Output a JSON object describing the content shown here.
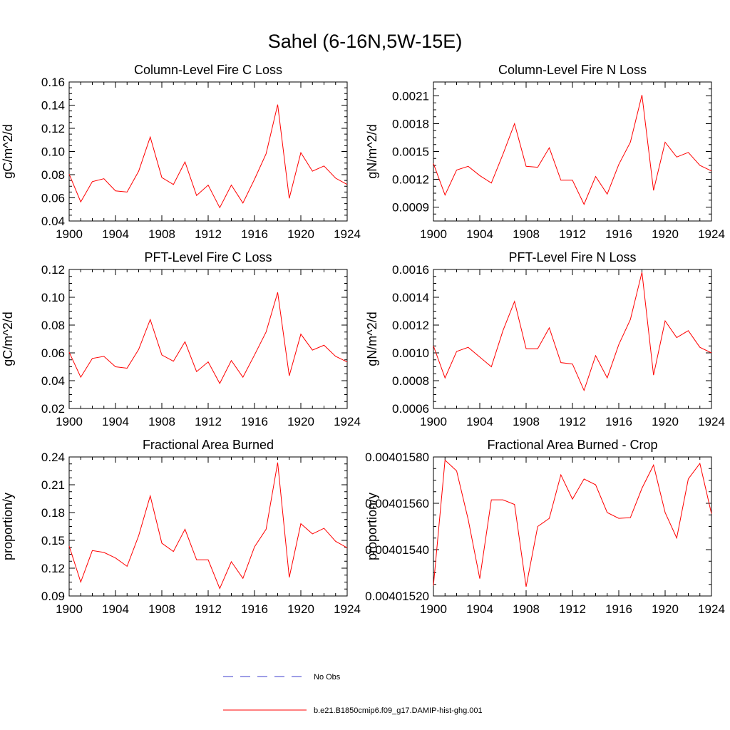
{
  "figure": {
    "title": "Sahel (6-16N,5W-15E)",
    "legend": [
      {
        "label": "No Obs",
        "style": "dashed",
        "color": "#3d3dcc"
      },
      {
        "label": "b.e21.B1850cmip6.f09_g17.DAMIP-hist-ghg.001",
        "style": "solid",
        "color": "#ff0000"
      }
    ]
  },
  "chart_data": [
    {
      "type": "line",
      "title": "Column-Level Fire C Loss",
      "ylabel": "gC/m^2/d",
      "xlim": [
        1900,
        1924
      ],
      "ylim": [
        0.04,
        0.16
      ],
      "xticks": [
        "1900",
        "1904",
        "1908",
        "1912",
        "1916",
        "1920",
        "1924"
      ],
      "yticks": [
        "0.04",
        "0.06",
        "0.08",
        "0.10",
        "0.12",
        "0.14",
        "0.16"
      ],
      "x": [
        1900,
        1901,
        1902,
        1903,
        1904,
        1905,
        1906,
        1907,
        1908,
        1909,
        1910,
        1911,
        1912,
        1913,
        1914,
        1915,
        1916,
        1917,
        1918,
        1919,
        1920,
        1921,
        1922,
        1923,
        1924
      ],
      "series": [
        {
          "name": "b.e21.B1850cmip6.f09_g17.DAMIP-hist-ghg.001",
          "color": "#ff0000",
          "values": [
            0.0805,
            0.0565,
            0.074,
            0.0765,
            0.066,
            0.065,
            0.083,
            0.1125,
            0.0775,
            0.0715,
            0.091,
            0.062,
            0.071,
            0.0515,
            0.071,
            0.0555,
            0.076,
            0.098,
            0.1405,
            0.0595,
            0.099,
            0.083,
            0.0875,
            0.077,
            0.0715
          ]
        }
      ]
    },
    {
      "type": "line",
      "title": "Column-Level Fire N Loss",
      "ylabel": "gN/m^2/d",
      "xlim": [
        1900,
        1924
      ],
      "ylim": [
        0.00075,
        0.00225
      ],
      "xticks": [
        "1900",
        "1904",
        "1908",
        "1912",
        "1916",
        "1920",
        "1924"
      ],
      "yticks": [
        "0.0009",
        "0.0012",
        "0.0015",
        "0.0018",
        "0.0021"
      ],
      "x": [
        1900,
        1901,
        1902,
        1903,
        1904,
        1905,
        1906,
        1907,
        1908,
        1909,
        1910,
        1911,
        1912,
        1913,
        1914,
        1915,
        1916,
        1917,
        1918,
        1919,
        1920,
        1921,
        1922,
        1923,
        1924
      ],
      "series": [
        {
          "name": "b.e21.B1850cmip6.f09_g17.DAMIP-hist-ghg.001",
          "color": "#ff0000",
          "values": [
            0.00137,
            0.00103,
            0.0013,
            0.00134,
            0.00124,
            0.00116,
            0.00147,
            0.0018,
            0.00134,
            0.00133,
            0.00154,
            0.00119,
            0.00119,
            0.00093,
            0.00123,
            0.00104,
            0.00136,
            0.0016,
            0.00211,
            0.00108,
            0.0016,
            0.00144,
            0.00149,
            0.00135,
            0.00129
          ]
        }
      ]
    },
    {
      "type": "line",
      "title": "PFT-Level Fire C Loss",
      "ylabel": "gC/m^2/d",
      "xlim": [
        1900,
        1924
      ],
      "ylim": [
        0.02,
        0.12
      ],
      "xticks": [
        "1900",
        "1904",
        "1908",
        "1912",
        "1916",
        "1920",
        "1924"
      ],
      "yticks": [
        "0.02",
        "0.04",
        "0.06",
        "0.08",
        "0.10",
        "0.12"
      ],
      "x": [
        1900,
        1901,
        1902,
        1903,
        1904,
        1905,
        1906,
        1907,
        1908,
        1909,
        1910,
        1911,
        1912,
        1913,
        1914,
        1915,
        1916,
        1917,
        1918,
        1919,
        1920,
        1921,
        1922,
        1923,
        1924
      ],
      "series": [
        {
          "name": "b.e21.B1850cmip6.f09_g17.DAMIP-hist-ghg.001",
          "color": "#ff0000",
          "values": [
            0.0605,
            0.0425,
            0.056,
            0.0575,
            0.05,
            0.049,
            0.0625,
            0.084,
            0.0585,
            0.054,
            0.068,
            0.0465,
            0.0535,
            0.038,
            0.0545,
            0.0425,
            0.0585,
            0.075,
            0.1035,
            0.0435,
            0.0735,
            0.062,
            0.0655,
            0.0575,
            0.0535
          ]
        }
      ]
    },
    {
      "type": "line",
      "title": "PFT-Level Fire N Loss",
      "ylabel": "gN/m^2/d",
      "xlim": [
        1900,
        1924
      ],
      "ylim": [
        0.0006,
        0.0016
      ],
      "xticks": [
        "1900",
        "1904",
        "1908",
        "1912",
        "1916",
        "1920",
        "1924"
      ],
      "yticks": [
        "0.0006",
        "0.0008",
        "0.0010",
        "0.0012",
        "0.0014",
        "0.0016"
      ],
      "x": [
        1900,
        1901,
        1902,
        1903,
        1904,
        1905,
        1906,
        1907,
        1908,
        1909,
        1910,
        1911,
        1912,
        1913,
        1914,
        1915,
        1916,
        1917,
        1918,
        1919,
        1920,
        1921,
        1922,
        1923,
        1924
      ],
      "series": [
        {
          "name": "b.e21.B1850cmip6.f09_g17.DAMIP-hist-ghg.001",
          "color": "#ff0000",
          "values": [
            0.00105,
            0.00082,
            0.00101,
            0.00104,
            0.00097,
            0.0009,
            0.00116,
            0.00137,
            0.00103,
            0.00103,
            0.00118,
            0.00093,
            0.00092,
            0.00073,
            0.00098,
            0.00082,
            0.00106,
            0.00124,
            0.00158,
            0.00084,
            0.00123,
            0.00111,
            0.00116,
            0.00104,
            0.001
          ]
        }
      ]
    },
    {
      "type": "line",
      "title": "Fractional Area Burned",
      "ylabel": "proportion/y",
      "xlim": [
        1900,
        1924
      ],
      "ylim": [
        0.09,
        0.24
      ],
      "xticks": [
        "1900",
        "1904",
        "1908",
        "1912",
        "1916",
        "1920",
        "1924"
      ],
      "yticks": [
        "0.09",
        "0.12",
        "0.15",
        "0.18",
        "0.21",
        "0.24"
      ],
      "x": [
        1900,
        1901,
        1902,
        1903,
        1904,
        1905,
        1906,
        1907,
        1908,
        1909,
        1910,
        1911,
        1912,
        1913,
        1914,
        1915,
        1916,
        1917,
        1918,
        1919,
        1920,
        1921,
        1922,
        1923,
        1924
      ],
      "series": [
        {
          "name": "b.e21.B1850cmip6.f09_g17.DAMIP-hist-ghg.001",
          "color": "#ff0000",
          "values": [
            0.144,
            0.105,
            0.139,
            0.137,
            0.131,
            0.122,
            0.155,
            0.198,
            0.147,
            0.138,
            0.162,
            0.129,
            0.129,
            0.098,
            0.127,
            0.109,
            0.143,
            0.162,
            0.234,
            0.11,
            0.168,
            0.157,
            0.163,
            0.149,
            0.142
          ]
        }
      ]
    },
    {
      "type": "line",
      "title": "Fractional Area Burned - Crop",
      "ylabel": "proportion/y",
      "xlim": [
        1900,
        1924
      ],
      "ylim": [
        0.0040152,
        0.0040158
      ],
      "xticks": [
        "1900",
        "1904",
        "1908",
        "1912",
        "1916",
        "1920",
        "1924"
      ],
      "yticks": [
        "0.00401520",
        "0.00401540",
        "0.00401560",
        "0.00401580"
      ],
      "x": [
        1900,
        1901,
        1902,
        1903,
        1904,
        1905,
        1906,
        1907,
        1908,
        1909,
        1910,
        1911,
        1912,
        1913,
        1914,
        1915,
        1916,
        1917,
        1918,
        1919,
        1920,
        1921,
        1922,
        1923,
        1924
      ],
      "series": [
        {
          "name": "b.e21.B1850cmip6.f09_g17.DAMIP-hist-ghg.001",
          "color": "#ff0000",
          "values": [
            0.004015245,
            0.004015786,
            0.00401574,
            0.00401553,
            0.004015275,
            0.004015615,
            0.004015615,
            0.004015595,
            0.00401524,
            0.0040155,
            0.004015535,
            0.004015723,
            0.004015618,
            0.004015705,
            0.00401568,
            0.00401556,
            0.004015535,
            0.004015538,
            0.004015665,
            0.004015765,
            0.00401556,
            0.00401545,
            0.004015705,
            0.004015772,
            0.004015555
          ]
        }
      ]
    }
  ]
}
